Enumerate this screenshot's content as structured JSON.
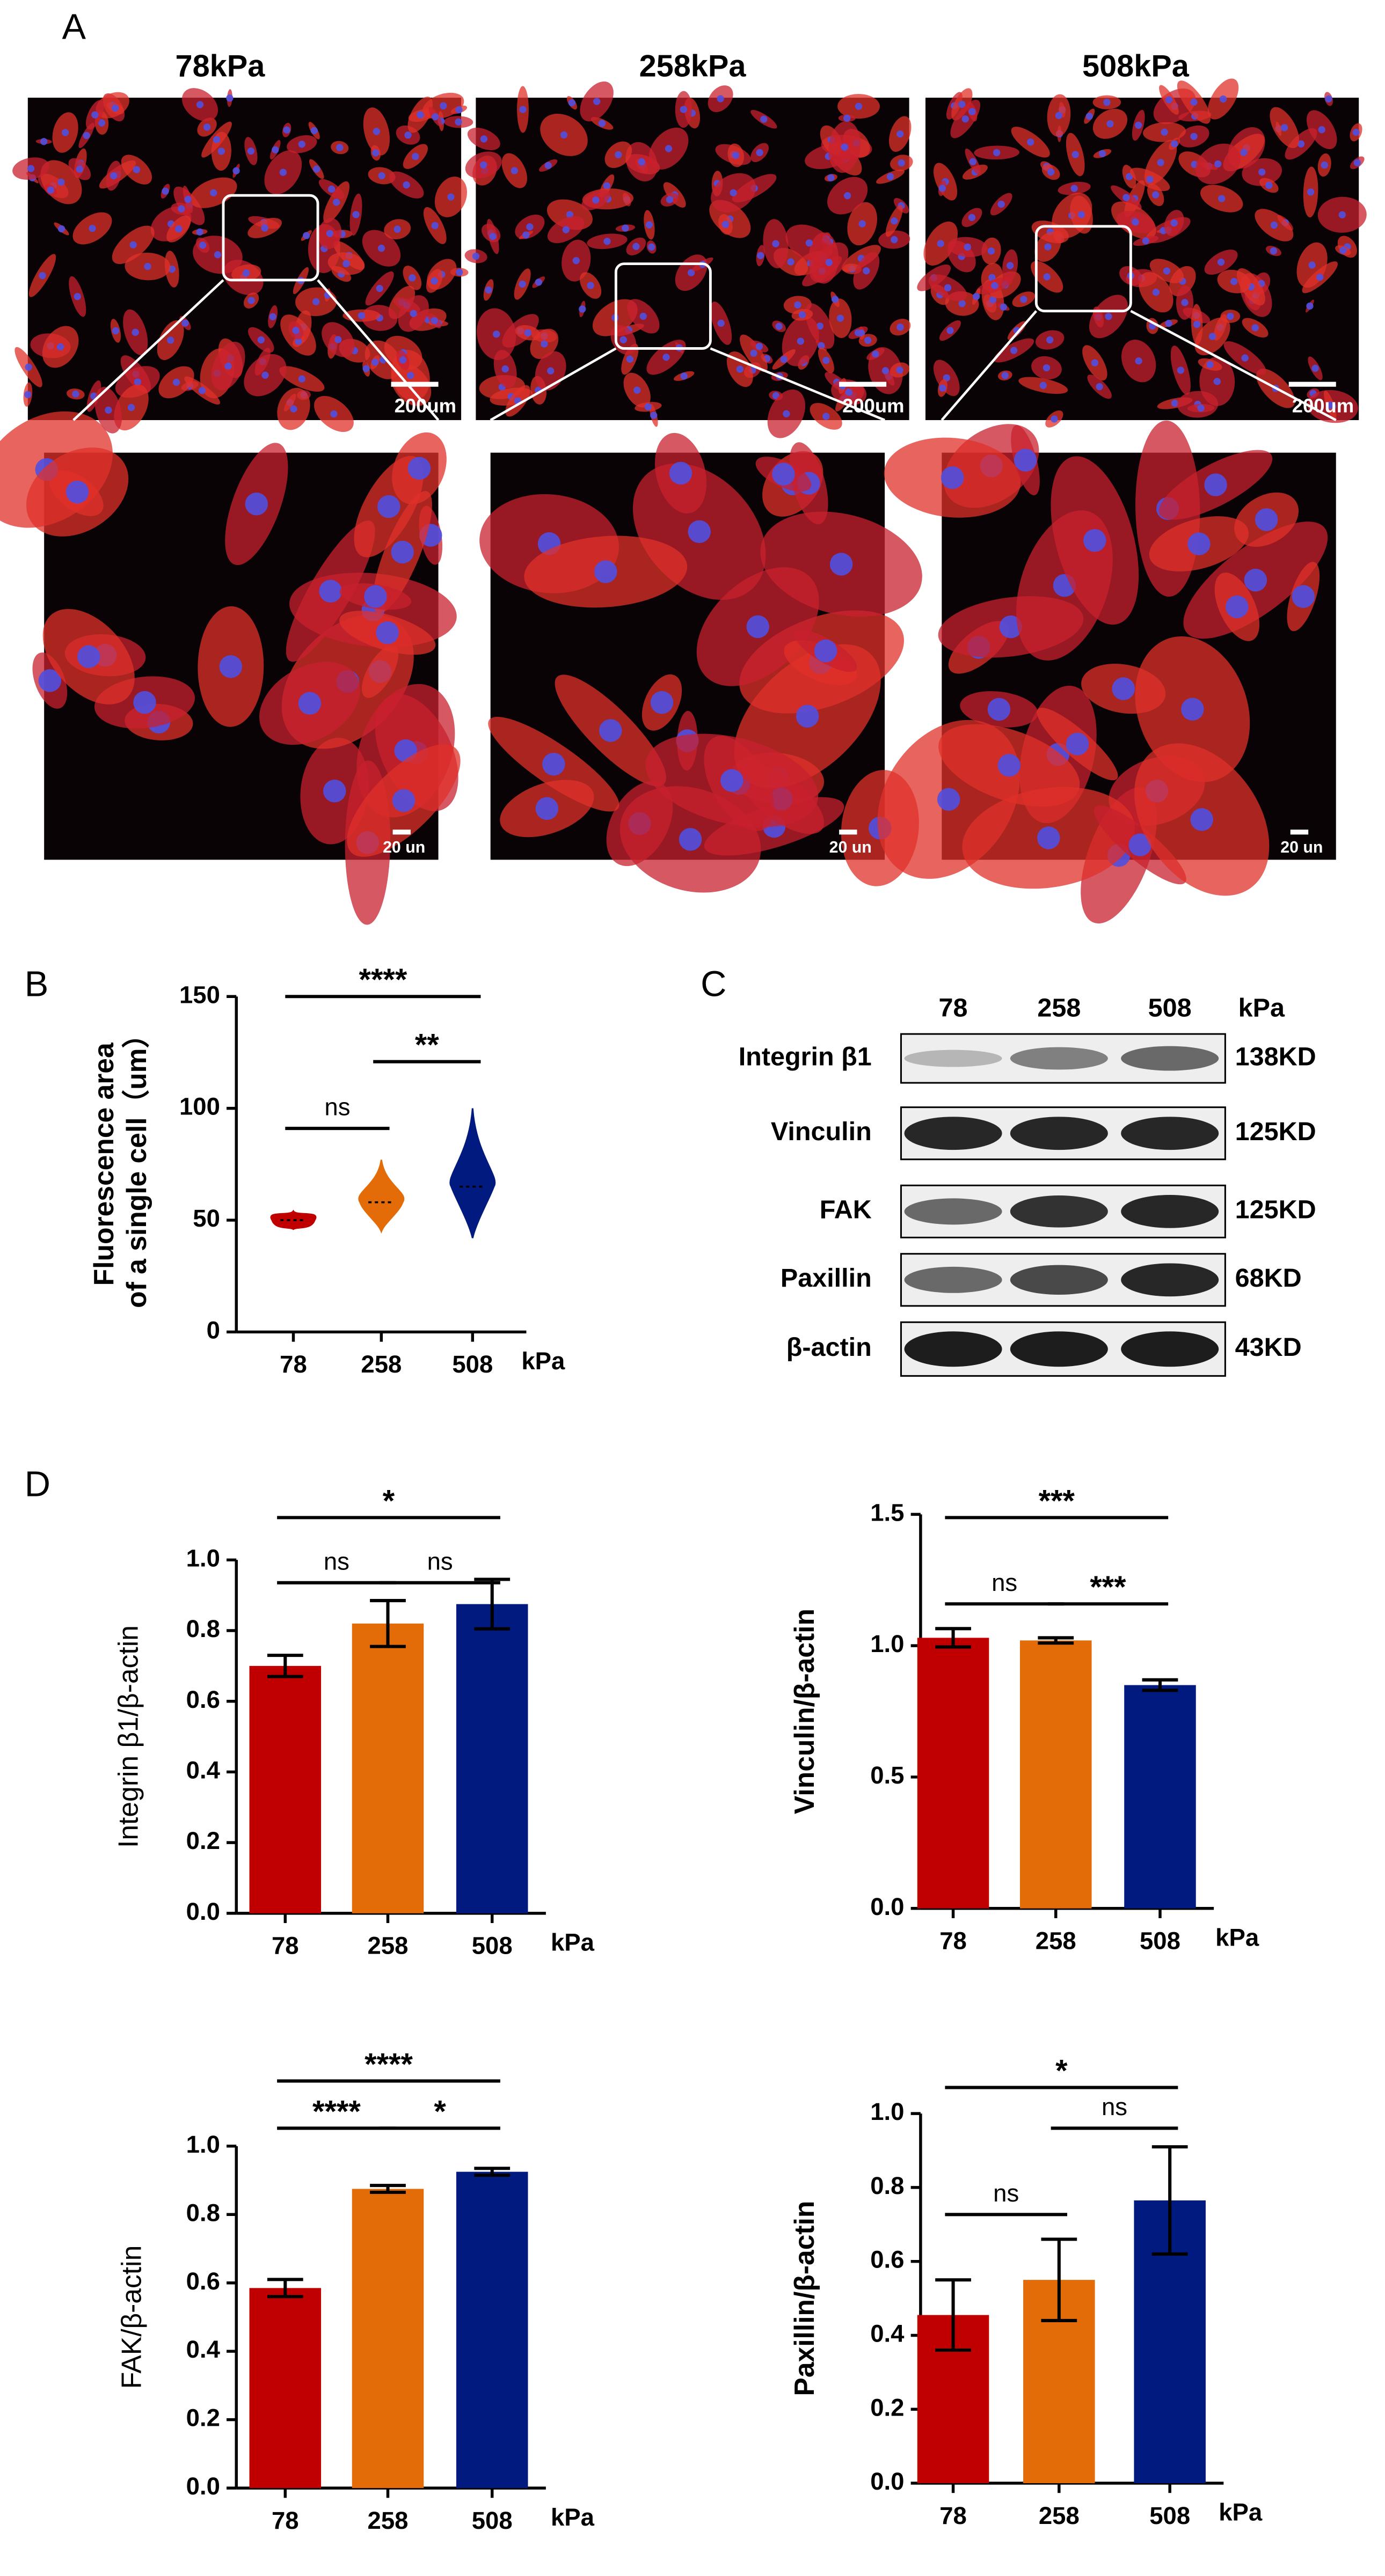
{
  "micrographs": {
    "panel_label": "A",
    "titles": [
      "78kPa",
      "258kPa",
      "508kPa"
    ],
    "scale_bars_overview": [
      "200um",
      "200um",
      "200um"
    ],
    "scale_bars_zoom": [
      "20 un",
      "20 un",
      "20 un"
    ]
  },
  "western_blot": {
    "panel_label": "C",
    "lanes": [
      "78",
      "258",
      "508"
    ],
    "lane_unit": "kPa",
    "proteins": [
      {
        "name": "Integrin β1",
        "size": "138KD"
      },
      {
        "name": "Vinculin",
        "size": "125KD"
      },
      {
        "name": "FAK",
        "size": "125KD"
      },
      {
        "name": "Paxillin",
        "size": "68KD"
      },
      {
        "name": "β-actin",
        "size": "43KD"
      }
    ]
  },
  "chart_data": [
    {
      "type": "violin",
      "panel_label": "B",
      "ylabel": [
        "Fluorescence area",
        "of a single cell（um）"
      ],
      "categories": [
        "78",
        "258",
        "508"
      ],
      "x_unit": "kPa",
      "values": [
        50,
        58,
        65
      ],
      "ranges": [
        [
          46,
          54
        ],
        [
          45,
          77
        ],
        [
          42,
          100
        ]
      ],
      "colors": [
        "#c00000",
        "#e36c09",
        "#001a80"
      ],
      "ylim": [
        0,
        150
      ],
      "yticks": [
        0,
        50,
        100,
        150
      ],
      "significance": [
        {
          "pair": [
            0,
            2
          ],
          "label": "****"
        },
        {
          "pair": [
            1,
            2
          ],
          "label": "**"
        },
        {
          "pair": [
            0,
            1
          ],
          "label": "ns"
        }
      ]
    },
    {
      "type": "bar",
      "panel_label": "D",
      "ylabel": [
        "Integrin β1/β-actin"
      ],
      "categories": [
        "78",
        "258",
        "508"
      ],
      "x_unit": "kPa",
      "values": [
        0.7,
        0.82,
        0.875
      ],
      "errors": [
        0.03,
        0.065,
        0.07
      ],
      "colors": [
        "#c00000",
        "#e36c09",
        "#001a80"
      ],
      "ylim": [
        0,
        1.0
      ],
      "yticks": [
        {
          "value": 0,
          "label": "0.0"
        },
        0.2,
        0.4,
        0.6,
        0.8,
        {
          "value": 1,
          "label": "1.0"
        }
      ],
      "significance": [
        {
          "pair": [
            0,
            2
          ],
          "label": "*"
        },
        {
          "pair": [
            0,
            1
          ],
          "label": "ns"
        },
        {
          "pair": [
            1,
            2
          ],
          "label": "ns"
        }
      ]
    },
    {
      "type": "bar",
      "ylabel": [
        "Vinculin/β-actin"
      ],
      "categories": [
        "78",
        "258",
        "508"
      ],
      "x_unit": "kPa",
      "values": [
        1.03,
        1.02,
        0.85
      ],
      "errors": [
        0.035,
        0.01,
        0.02
      ],
      "colors": [
        "#c00000",
        "#e36c09",
        "#001a80"
      ],
      "ylim": [
        0,
        1.5
      ],
      "yticks": [
        {
          "value": 0,
          "label": "0.0"
        },
        0.5,
        {
          "value": 1,
          "label": "1.0"
        },
        1.5
      ],
      "significance": [
        {
          "pair": [
            0,
            2
          ],
          "label": "***"
        },
        {
          "pair": [
            0,
            1
          ],
          "label": "ns"
        },
        {
          "pair": [
            1,
            2
          ],
          "label": "***"
        }
      ]
    },
    {
      "type": "bar",
      "ylabel": [
        "FAK/β-actin"
      ],
      "categories": [
        "78",
        "258",
        "508"
      ],
      "x_unit": "kPa",
      "values": [
        0.585,
        0.875,
        0.925
      ],
      "errors": [
        0.025,
        0.01,
        0.01
      ],
      "colors": [
        "#c00000",
        "#e36c09",
        "#001a80"
      ],
      "ylim": [
        0,
        1.0
      ],
      "yticks": [
        {
          "value": 0,
          "label": "0.0"
        },
        0.2,
        0.4,
        0.6,
        0.8,
        {
          "value": 1,
          "label": "1.0"
        }
      ],
      "significance": [
        {
          "pair": [
            0,
            2
          ],
          "label": "****"
        },
        {
          "pair": [
            0,
            1
          ],
          "label": "****"
        },
        {
          "pair": [
            1,
            2
          ],
          "label": "*"
        }
      ]
    },
    {
      "type": "bar",
      "ylabel": [
        "Paxillin/β-actin"
      ],
      "categories": [
        "78",
        "258",
        "508"
      ],
      "x_unit": "kPa",
      "values": [
        0.455,
        0.55,
        0.765
      ],
      "errors": [
        0.095,
        0.11,
        0.145
      ],
      "colors": [
        "#c00000",
        "#e36c09",
        "#001a80"
      ],
      "ylim": [
        0,
        1.0
      ],
      "yticks": [
        {
          "value": 0,
          "label": "0.0"
        },
        0.2,
        0.4,
        0.6,
        0.8,
        {
          "value": 1,
          "label": "1.0"
        }
      ],
      "significance": [
        {
          "pair": [
            0,
            2
          ],
          "label": "*"
        },
        {
          "pair": [
            0,
            1
          ],
          "label": "ns"
        },
        {
          "pair": [
            1,
            2
          ],
          "label": "ns"
        }
      ]
    }
  ]
}
